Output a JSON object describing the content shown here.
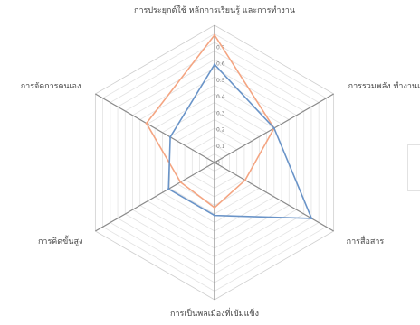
{
  "chart_data": {
    "type": "radar",
    "title": "",
    "axes": [
      "การประยุกต์ใช้ หลักการเรียนรู้ และการทำงาน",
      "การรวมพลัง ทำงานเป็นทีม",
      "การสื่อสาร",
      "การเป็นพลเมืองที่เข้มแข็ง",
      "การคิดขั้นสูง",
      "การจัดการตนเอง"
    ],
    "rlim": [
      0,
      0.7
    ],
    "ticks": [
      "0",
      "0.1",
      "0.2",
      "0.3",
      "0.4",
      "0.5",
      "0.6",
      "0.7"
    ],
    "grid": true,
    "legend": "right",
    "series": [
      {
        "values": [
          0.65,
          0.35,
          0.18,
          0.23,
          0.2,
          0.4
        ],
        "color": "#f4a582"
      },
      {
        "values": [
          0.5,
          0.35,
          0.57,
          0.27,
          0.27,
          0.26
        ],
        "color": "#6a94c8"
      }
    ]
  }
}
